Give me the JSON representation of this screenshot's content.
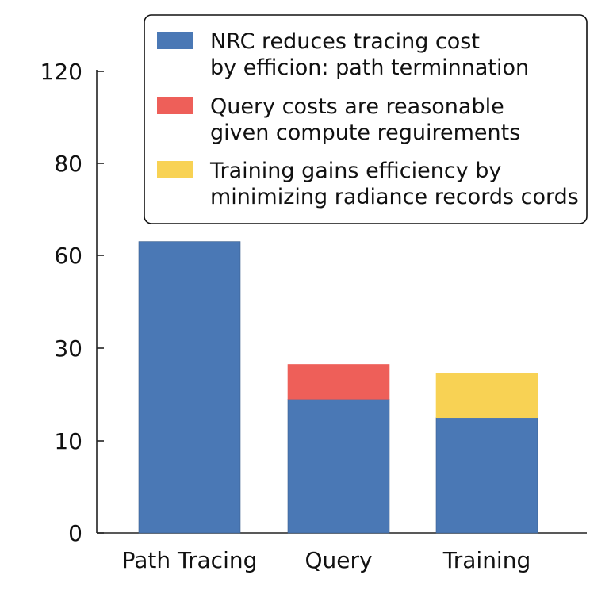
{
  "chart_data": {
    "type": "bar",
    "stacked": true,
    "categories": [
      "Path Tracing",
      "Query",
      "Training"
    ],
    "y_ticks": [
      "0",
      "10",
      "30",
      "60",
      "80",
      "120"
    ],
    "series": [
      {
        "name": "NRC reduces tracing cost by efficion: path terminnation",
        "color": "#4a78b5",
        "values": [
          63,
          19,
          15
        ]
      },
      {
        "name": "Query costs are reasonable given compute reguirements",
        "color": "#ee5f59",
        "values": [
          0,
          7.5,
          0
        ]
      },
      {
        "name": "Training gains efficiency by minimizing radiance records cords",
        "color": "#f8d254",
        "values": [
          0,
          0,
          9.5
        ]
      }
    ],
    "legend": {
      "position": "top-right",
      "entries": [
        {
          "line1": "NRC reduces tracing cost",
          "line2": "by efficion: path terminnation",
          "color": "#4a78b5"
        },
        {
          "line1": "Query costs are reasonable",
          "line2": "given compute reguirements",
          "color": "#ee5f59"
        },
        {
          "line1": "Training gains efficiency by",
          "line2": "minimizing radiance records cords",
          "color": "#f8d254"
        }
      ]
    },
    "grid": false
  }
}
